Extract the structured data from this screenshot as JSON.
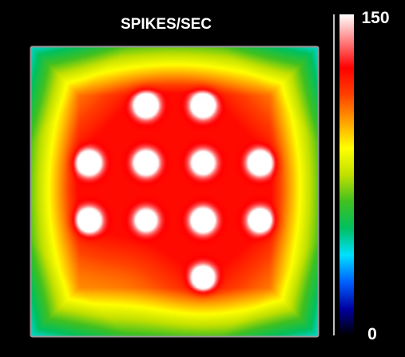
{
  "chart_data": {
    "type": "heatmap",
    "title": "SPIKES/SEC",
    "colorbar": {
      "min": 0,
      "max": 150,
      "min_label": "0",
      "max_label": "150"
    },
    "grid": false,
    "colormap": [
      "#000000",
      "#0000a0",
      "#0060ff",
      "#00e0ff",
      "#00c060",
      "#40c020",
      "#c0e000",
      "#ffff00",
      "#ffa000",
      "#ff4000",
      "#ff0000",
      "#ff8080",
      "#ffffff"
    ],
    "hotspots": [
      {
        "col": 2,
        "row": 1,
        "value": 150
      },
      {
        "col": 3,
        "row": 1,
        "value": 150
      },
      {
        "col": 1,
        "row": 2,
        "value": 150
      },
      {
        "col": 2,
        "row": 2,
        "value": 150
      },
      {
        "col": 3,
        "row": 2,
        "value": 130
      },
      {
        "col": 4,
        "row": 2,
        "value": 150
      },
      {
        "col": 1,
        "row": 3,
        "value": 145
      },
      {
        "col": 2,
        "row": 3,
        "value": 110
      },
      {
        "col": 3,
        "row": 3,
        "value": 150
      },
      {
        "col": 4,
        "row": 3,
        "value": 130
      },
      {
        "col": 3,
        "row": 4,
        "value": 140
      }
    ]
  }
}
